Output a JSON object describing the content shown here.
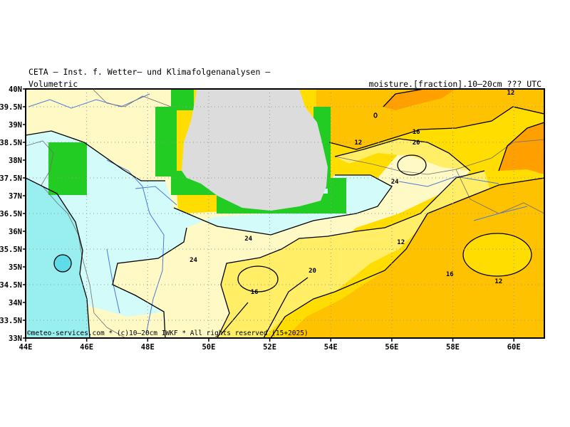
{
  "header": {
    "title": "CETA – Inst. f. Wetter– und Klimafolgenanalysen –",
    "left_sub": "Volumetric",
    "right_sub": "moisture.[fraction].10–20cm ??? UTC"
  },
  "map": {
    "lon_labels": [
      "44E",
      "46E",
      "48E",
      "50E",
      "52E",
      "54E",
      "56E",
      "58E",
      "60E"
    ],
    "lat_labels": [
      "40N",
      "39.5N",
      "39N",
      "38.5N",
      "38N",
      "37.5N",
      "37N",
      "36.5N",
      "36N",
      "35.5N",
      "35N",
      "34.5N",
      "34N",
      "33.5N",
      "33N"
    ],
    "contour_labels": [
      {
        "text": "12",
        "lon": 59.9,
        "lat": 39.9
      },
      {
        "text": "12",
        "lon": 54.9,
        "lat": 38.5
      },
      {
        "text": "16",
        "lon": 56.8,
        "lat": 38.8
      },
      {
        "text": "20",
        "lon": 56.8,
        "lat": 38.5
      },
      {
        "text": "24",
        "lon": 56.1,
        "lat": 37.4
      },
      {
        "text": "24",
        "lon": 49.5,
        "lat": 35.2
      },
      {
        "text": "24",
        "lon": 51.3,
        "lat": 35.8
      },
      {
        "text": "12",
        "lon": 56.3,
        "lat": 35.7
      },
      {
        "text": "20",
        "lon": 53.4,
        "lat": 34.9
      },
      {
        "text": "16",
        "lon": 57.9,
        "lat": 34.8
      },
      {
        "text": "12",
        "lon": 59.5,
        "lat": 34.6
      },
      {
        "text": "16",
        "lon": 51.5,
        "lat": 34.3
      }
    ],
    "credit": "©meteo-services.com * (c)10–20cm IWKF * All rights reserved (15+2025)",
    "colors": {
      "very_dry": "#ff9f00",
      "dry": "#ffc200",
      "mid_dry": "#ffdd00",
      "mid": "#ffee66",
      "moist": "#fff9c6",
      "wet": "#d3fbfa",
      "very_wet": "#99eef0",
      "wettest": "#5fdcea",
      "water": "#dcdcdc",
      "coast_mask": "#22cc22"
    }
  }
}
